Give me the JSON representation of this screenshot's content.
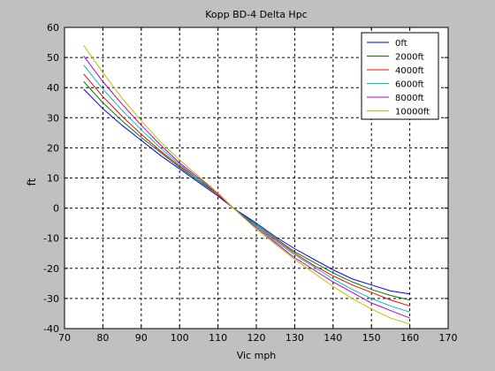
{
  "chart_data": {
    "type": "line",
    "title": "Kopp BD-4 Delta Hpc",
    "xlabel": "Vic mph",
    "ylabel": "ft",
    "xlim": [
      70,
      170
    ],
    "ylim": [
      -40,
      60
    ],
    "x_ticks": [
      70,
      80,
      90,
      100,
      110,
      120,
      130,
      140,
      150,
      160,
      170
    ],
    "y_ticks": [
      -40,
      -30,
      -20,
      -10,
      0,
      10,
      20,
      30,
      40,
      50,
      60
    ],
    "grid": true,
    "grid_style": "dashed",
    "legend_position": "top-right",
    "x": [
      75,
      80,
      85,
      90,
      95,
      100,
      105,
      110,
      114,
      120,
      125,
      130,
      135,
      140,
      145,
      150,
      155,
      160
    ],
    "series": [
      {
        "name": "0ft",
        "color": "#0000ff",
        "values": [
          39.5,
          33,
          27.5,
          22.5,
          17.5,
          13,
          8.5,
          4,
          0,
          -5,
          -9.5,
          -13.5,
          -17,
          -20.5,
          -23.5,
          -25.5,
          -27.5,
          -28.5
        ]
      },
      {
        "name": "2000ft",
        "color": "#008000",
        "values": [
          42,
          35,
          29,
          23.5,
          18.5,
          13.5,
          9,
          4.5,
          0,
          -5.5,
          -10,
          -14.5,
          -18,
          -21.5,
          -24.5,
          -27,
          -29,
          -30.5
        ]
      },
      {
        "name": "4000ft",
        "color": "#ff0000",
        "values": [
          44.5,
          37,
          30.5,
          24.5,
          19,
          14,
          9.5,
          4.5,
          0,
          -6,
          -10.5,
          -15,
          -19,
          -22.5,
          -25.5,
          -28,
          -30.5,
          -32.5
        ]
      },
      {
        "name": "6000ft",
        "color": "#00bfbf",
        "values": [
          47.5,
          39.5,
          32.5,
          26,
          20,
          14.5,
          9.5,
          5,
          0,
          -6,
          -11,
          -15.5,
          -19.5,
          -23.5,
          -27,
          -30,
          -32.5,
          -34.5
        ]
      },
      {
        "name": "8000ft",
        "color": "#bf00bf",
        "values": [
          50.5,
          42,
          34.5,
          27.5,
          21,
          15,
          10,
          5,
          0,
          -6.5,
          -11.5,
          -16.5,
          -20.5,
          -24.5,
          -28,
          -31.5,
          -34,
          -36.5
        ]
      },
      {
        "name": "10000ft",
        "color": "#bfbf00",
        "values": [
          54,
          45,
          36.5,
          29,
          22,
          16,
          10.5,
          5,
          0,
          -7,
          -12,
          -17,
          -21.5,
          -26,
          -30,
          -33.5,
          -36.5,
          -38.5
        ]
      }
    ]
  }
}
